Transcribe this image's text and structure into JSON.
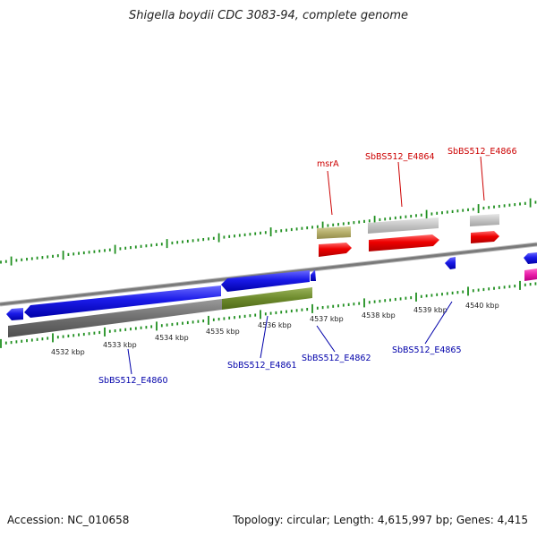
{
  "title": "Shigella boydii CDC 3083-94, complete genome",
  "footer": {
    "accession": "Accession: NC_010658",
    "stats": "Topology: circular; Length: 4,615,997 bp; Genes: 4,415"
  },
  "colors": {
    "forward_label": "#cc0000",
    "reverse_label": "#0000aa",
    "backbone": "#7f7f7f",
    "tick": "#1f8f1f"
  },
  "kbp_labels": [
    "4532 kbp",
    "4533 kbp",
    "4534 kbp",
    "4535 kbp",
    "4536 kbp",
    "4537 kbp",
    "4538 kbp",
    "4539 kbp",
    "4540 kbp"
  ],
  "forward_labels": [
    "msrA",
    "SbBS512_E4864",
    "SbBS512_E4866"
  ],
  "reverse_labels": [
    "SbBS512_E4860",
    "SbBS512_E4861",
    "SbBS512_E4862",
    "SbBS512_E4865"
  ]
}
